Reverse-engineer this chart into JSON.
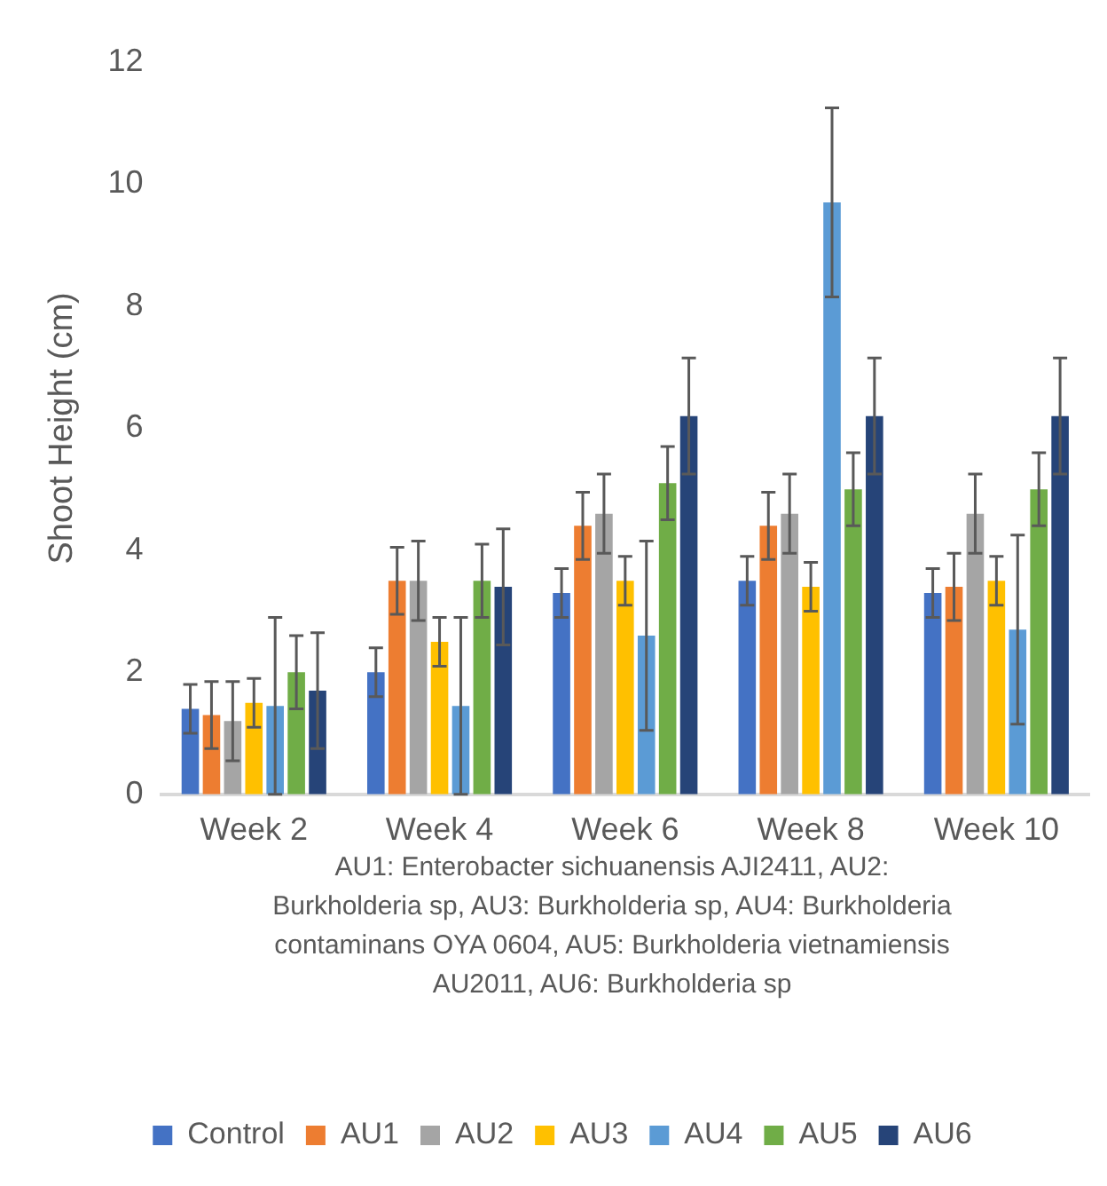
{
  "chart_data": {
    "type": "bar",
    "ylabel": "Shoot Height (cm)",
    "categories": [
      "Week 2",
      "Week 4",
      "Week 6",
      "Week 8",
      "Week 10"
    ],
    "series": [
      {
        "name": "Control",
        "color": "#4472c4",
        "values": [
          1.4,
          2.0,
          3.3,
          3.5,
          3.3
        ],
        "errors": [
          0.4,
          0.4,
          0.4,
          0.4,
          0.4
        ]
      },
      {
        "name": "AU1",
        "color": "#ed7d31",
        "values": [
          1.3,
          3.5,
          4.4,
          4.4,
          3.4
        ],
        "errors": [
          0.55,
          0.55,
          0.55,
          0.55,
          0.55
        ]
      },
      {
        "name": "AU2",
        "color": "#a5a5a5",
        "values": [
          1.2,
          3.5,
          4.6,
          4.6,
          4.6
        ],
        "errors": [
          0.65,
          0.65,
          0.65,
          0.65,
          0.65
        ]
      },
      {
        "name": "AU3",
        "color": "#ffc000",
        "values": [
          1.5,
          2.5,
          3.5,
          3.4,
          3.5
        ],
        "errors": [
          0.4,
          0.4,
          0.4,
          0.4,
          0.4
        ]
      },
      {
        "name": "AU4",
        "color": "#5b9bd5",
        "values": [
          1.45,
          1.45,
          2.6,
          9.7,
          2.7
        ],
        "errors": [
          1.45,
          1.45,
          1.55,
          1.55,
          1.55
        ]
      },
      {
        "name": "AU5",
        "color": "#70ad47",
        "values": [
          2.0,
          3.5,
          5.1,
          5.0,
          5.0
        ],
        "errors": [
          0.6,
          0.6,
          0.6,
          0.6,
          0.6
        ]
      },
      {
        "name": "AU6",
        "color": "#264478",
        "values": [
          1.7,
          3.4,
          6.2,
          6.2,
          6.2
        ],
        "errors": [
          0.95,
          0.95,
          0.95,
          0.95,
          0.95
        ]
      }
    ],
    "ylim": [
      0,
      12
    ],
    "yticks": [
      0,
      2,
      4,
      6,
      8,
      10,
      12
    ],
    "grid": false,
    "legend": "bottom",
    "annotations": [
      "AU1: Enterobacter sichuanensis AJI2411, AU2: Burkholderia sp, AU3: Burkholderia sp, AU4: Burkholderia contaminans OYA 0604, AU5: Burkholderia vietnamiensis AU2011, AU6: Burkholderia sp"
    ]
  }
}
